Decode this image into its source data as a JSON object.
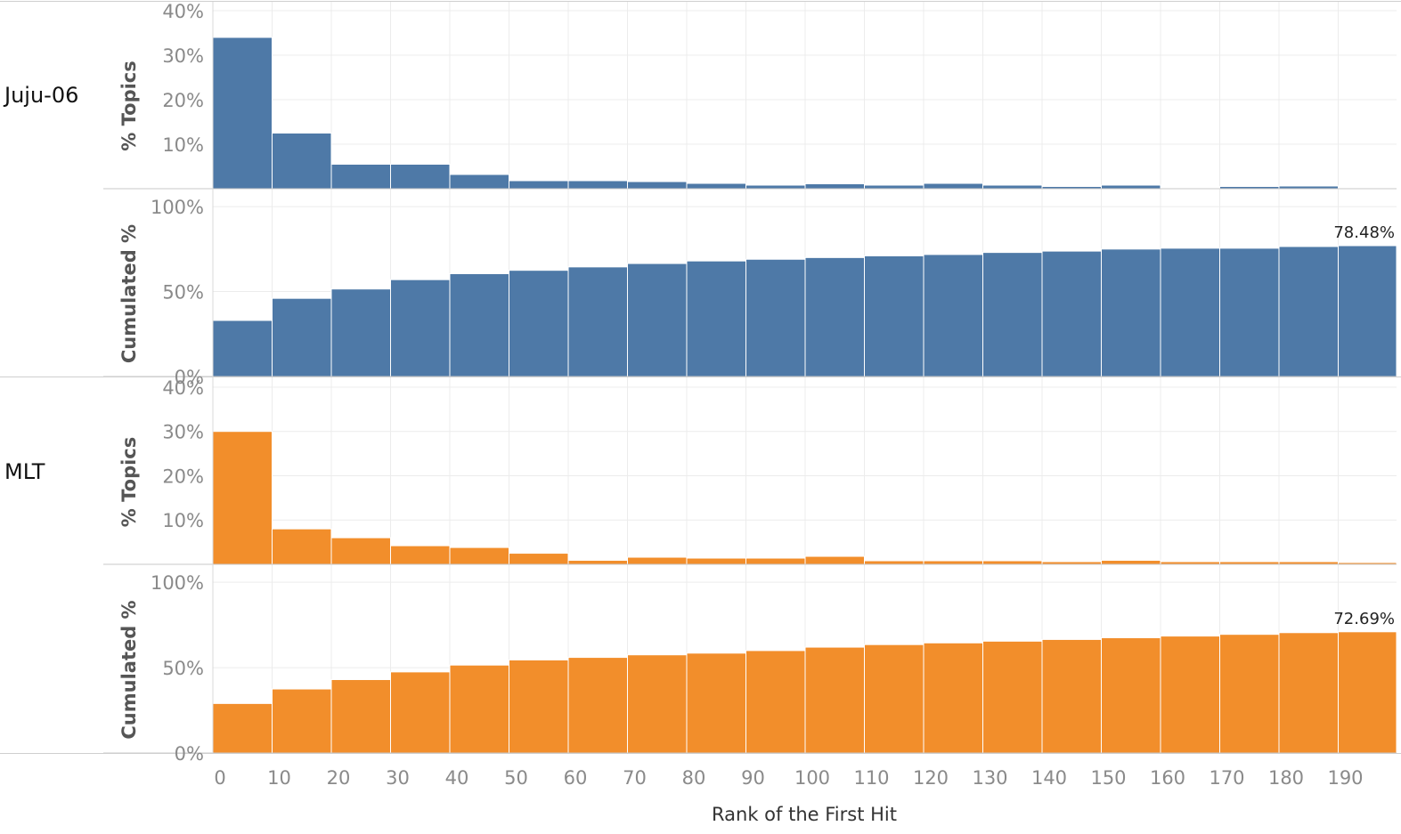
{
  "chart_data": {
    "type": "bar",
    "xlabel": "Rank of the First Hit",
    "x_ticks": [
      "0",
      "10",
      "20",
      "30",
      "40",
      "50",
      "60",
      "70",
      "80",
      "90",
      "100",
      "110",
      "120",
      "130",
      "140",
      "150",
      "160",
      "170",
      "180",
      "190"
    ],
    "categories": [
      "0",
      "10",
      "20",
      "30",
      "40",
      "50",
      "60",
      "70",
      "80",
      "90",
      "100",
      "110",
      "120",
      "130",
      "140",
      "150",
      "160",
      "170",
      "180",
      "190"
    ],
    "grid": true,
    "rows": [
      {
        "name": "Juju-06",
        "color": "#4e79a7",
        "panels": [
          {
            "ylabel": "% Topics",
            "ylim": [
              0,
              42
            ],
            "y_ticks": [
              "10%",
              "20%",
              "30%",
              "40%"
            ],
            "y_tick_values": [
              10,
              20,
              30,
              40
            ],
            "values": [
              34.0,
              12.5,
              5.5,
              5.5,
              3.2,
              1.8,
              1.8,
              1.6,
              1.2,
              0.8,
              1.1,
              0.8,
              1.2,
              0.8,
              0.5,
              0.8,
              0.1,
              0.5,
              0.6,
              0.1
            ],
            "annotation": ""
          },
          {
            "ylabel": "Cumulated %",
            "ylim": [
              0,
              110
            ],
            "y_ticks": [
              "0%",
              "50%",
              "100%"
            ],
            "y_tick_values": [
              0,
              50,
              100
            ],
            "values": [
              33.0,
              46.0,
              51.5,
              57.0,
              60.5,
              62.5,
              64.5,
              66.5,
              68.0,
              69.0,
              70.0,
              71.0,
              71.8,
              73.0,
              73.8,
              75.0,
              75.5,
              75.5,
              76.5,
              77.0
            ],
            "last_value": 78.48,
            "annotation": "78.48%"
          }
        ]
      },
      {
        "name": "MLT",
        "color": "#f28e2b",
        "panels": [
          {
            "ylabel": "% Topics",
            "ylim": [
              0,
              42
            ],
            "y_ticks": [
              "10%",
              "20%",
              "30%",
              "40%"
            ],
            "y_tick_values": [
              10,
              20,
              30,
              40
            ],
            "values": [
              30.0,
              8.0,
              6.0,
              4.2,
              3.8,
              2.5,
              0.9,
              1.6,
              1.4,
              1.4,
              1.8,
              0.8,
              0.8,
              0.8,
              0.6,
              0.9,
              0.6,
              0.6,
              0.6,
              0.4
            ],
            "annotation": ""
          },
          {
            "ylabel": "Cumulated %",
            "ylim": [
              0,
              110
            ],
            "y_ticks": [
              "0%",
              "50%",
              "100%"
            ],
            "y_tick_values": [
              0,
              50,
              100
            ],
            "values": [
              29.0,
              37.5,
              43.0,
              47.5,
              51.5,
              54.5,
              56.0,
              57.5,
              58.5,
              60.0,
              62.0,
              63.5,
              64.5,
              65.5,
              66.5,
              67.5,
              68.5,
              69.5,
              70.5,
              71.0
            ],
            "last_value": 72.69,
            "annotation": "72.69%"
          }
        ]
      }
    ]
  }
}
